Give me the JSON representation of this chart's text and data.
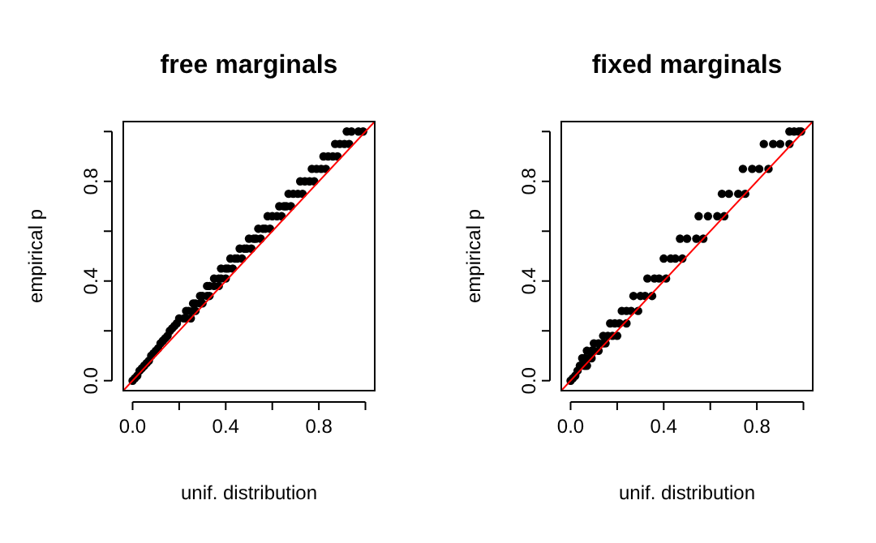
{
  "chart_data": [
    {
      "type": "scatter",
      "title": "free marginals",
      "xlabel": "unif. distribution",
      "ylabel": "empirical p",
      "xlim": [
        -0.04,
        1.04
      ],
      "ylim": [
        -0.04,
        1.04
      ],
      "xticks": [
        {
          "value": 0,
          "label": "0.0"
        },
        {
          "value": 0.2,
          "label": null
        },
        {
          "value": 0.4,
          "label": "0.4"
        },
        {
          "value": 0.6,
          "label": null
        },
        {
          "value": 0.8,
          "label": "0.8"
        },
        {
          "value": 1,
          "label": null
        }
      ],
      "yticks": [
        {
          "value": 0,
          "label": "0.0"
        },
        {
          "value": 0.2,
          "label": null
        },
        {
          "value": 0.4,
          "label": "0.4"
        },
        {
          "value": 0.6,
          "label": null
        },
        {
          "value": 0.8,
          "label": "0.8"
        },
        {
          "value": 1,
          "label": null
        }
      ],
      "grid": false,
      "series": [
        {
          "marker": "circle",
          "color": "#000000",
          "x": [
            0,
            0.01,
            0.02,
            0.03,
            0.04,
            0.05,
            0.06,
            0.07,
            0.08,
            0.09,
            0.1,
            0.11,
            0.12,
            0.13,
            0.14,
            0.15,
            0.16,
            0.17,
            0.18,
            0.19,
            0.2,
            0.22,
            0.23,
            0.25,
            0.23,
            0.24,
            0.26,
            0.27,
            0.26,
            0.27,
            0.29,
            0.3,
            0.29,
            0.3,
            0.32,
            0.33,
            0.32,
            0.33,
            0.35,
            0.37,
            0.35,
            0.37,
            0.38,
            0.4,
            0.38,
            0.4,
            0.41,
            0.43,
            0.42,
            0.44,
            0.45,
            0.47,
            0.46,
            0.48,
            0.49,
            0.51,
            0.5,
            0.52,
            0.53,
            0.55,
            0.54,
            0.56,
            0.57,
            0.59,
            0.58,
            0.6,
            0.62,
            0.64,
            0.63,
            0.65,
            0.66,
            0.68,
            0.67,
            0.69,
            0.71,
            0.73,
            0.72,
            0.74,
            0.76,
            0.78,
            0.77,
            0.79,
            0.81,
            0.83,
            0.82,
            0.84,
            0.86,
            0.88,
            0.87,
            0.89,
            0.91,
            0.93,
            0.92,
            0.94,
            0.97,
            0.99
          ],
          "values": [
            0,
            0.01,
            0.02,
            0.04,
            0.05,
            0.06,
            0.07,
            0.08,
            0.1,
            0.11,
            0.12,
            0.13,
            0.15,
            0.16,
            0.17,
            0.18,
            0.2,
            0.21,
            0.22,
            0.23,
            0.25,
            0.25,
            0.25,
            0.25,
            0.28,
            0.28,
            0.28,
            0.28,
            0.31,
            0.31,
            0.31,
            0.31,
            0.34,
            0.34,
            0.34,
            0.34,
            0.38,
            0.38,
            0.38,
            0.38,
            0.41,
            0.41,
            0.41,
            0.41,
            0.45,
            0.45,
            0.45,
            0.45,
            0.49,
            0.49,
            0.49,
            0.49,
            0.53,
            0.53,
            0.53,
            0.53,
            0.57,
            0.57,
            0.57,
            0.57,
            0.61,
            0.61,
            0.61,
            0.61,
            0.66,
            0.66,
            0.66,
            0.66,
            0.7,
            0.7,
            0.7,
            0.7,
            0.75,
            0.75,
            0.75,
            0.75,
            0.8,
            0.8,
            0.8,
            0.8,
            0.85,
            0.85,
            0.85,
            0.85,
            0.9,
            0.9,
            0.9,
            0.9,
            0.95,
            0.95,
            0.95,
            0.95,
            1,
            1,
            1,
            1
          ]
        },
        {
          "type": "line",
          "color": "#ff0000",
          "x": [
            -0.04,
            1.04
          ],
          "values": [
            -0.04,
            1.04
          ]
        }
      ]
    },
    {
      "type": "scatter",
      "title": "fixed marginals",
      "xlabel": "unif. distribution",
      "ylabel": "empirical p",
      "xlim": [
        -0.04,
        1.04
      ],
      "ylim": [
        -0.04,
        1.04
      ],
      "xticks": [
        {
          "value": 0,
          "label": "0.0"
        },
        {
          "value": 0.2,
          "label": null
        },
        {
          "value": 0.4,
          "label": "0.4"
        },
        {
          "value": 0.6,
          "label": null
        },
        {
          "value": 0.8,
          "label": "0.8"
        },
        {
          "value": 1,
          "label": null
        }
      ],
      "yticks": [
        {
          "value": 0,
          "label": "0.0"
        },
        {
          "value": 0.2,
          "label": null
        },
        {
          "value": 0.4,
          "label": "0.4"
        },
        {
          "value": 0.6,
          "label": null
        },
        {
          "value": 0.8,
          "label": "0.8"
        },
        {
          "value": 1,
          "label": null
        }
      ],
      "grid": false,
      "series": [
        {
          "marker": "circle",
          "color": "#000000",
          "x": [
            0,
            0.01,
            0.02,
            0.03,
            0.04,
            0.06,
            0.07,
            0.05,
            0.06,
            0.08,
            0.09,
            0.07,
            0.09,
            0.1,
            0.12,
            0.1,
            0.12,
            0.14,
            0.15,
            0.14,
            0.16,
            0.18,
            0.2,
            0.17,
            0.19,
            0.21,
            0.24,
            0.22,
            0.24,
            0.26,
            0.29,
            0.27,
            0.3,
            0.32,
            0.35,
            0.33,
            0.36,
            0.38,
            0.41,
            0.4,
            0.43,
            0.45,
            0.48,
            0.47,
            0.5,
            0.54,
            0.57,
            0.55,
            0.59,
            0.63,
            0.66,
            0.65,
            0.68,
            0.72,
            0.75,
            0.74,
            0.78,
            0.81,
            0.85,
            0.83,
            0.87,
            0.9,
            0.94,
            0.94,
            0.96,
            0.98,
            0.99
          ],
          "values": [
            0,
            0.01,
            0.02,
            0.04,
            0.06,
            0.06,
            0.06,
            0.09,
            0.09,
            0.09,
            0.09,
            0.12,
            0.12,
            0.12,
            0.12,
            0.15,
            0.15,
            0.15,
            0.15,
            0.18,
            0.18,
            0.18,
            0.18,
            0.23,
            0.23,
            0.23,
            0.23,
            0.28,
            0.28,
            0.28,
            0.28,
            0.34,
            0.34,
            0.34,
            0.34,
            0.41,
            0.41,
            0.41,
            0.41,
            0.49,
            0.49,
            0.49,
            0.49,
            0.57,
            0.57,
            0.57,
            0.57,
            0.66,
            0.66,
            0.66,
            0.66,
            0.75,
            0.75,
            0.75,
            0.75,
            0.85,
            0.85,
            0.85,
            0.85,
            0.95,
            0.95,
            0.95,
            0.95,
            1,
            1,
            1,
            1
          ]
        },
        {
          "type": "line",
          "color": "#ff0000",
          "x": [
            -0.04,
            1.04
          ],
          "values": [
            -0.04,
            1.04
          ]
        }
      ]
    }
  ]
}
